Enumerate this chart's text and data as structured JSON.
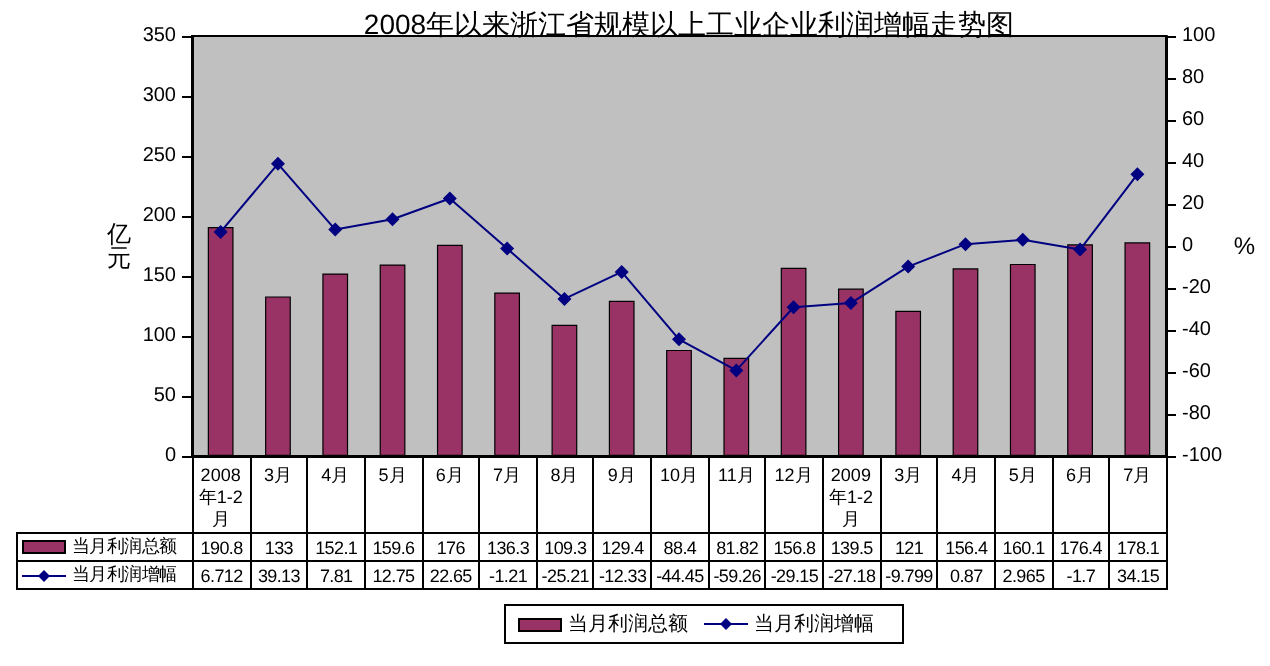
{
  "chart_data": {
    "type": "bar",
    "title": "2008年以来浙江省规模以上工业企业利润增幅走势图",
    "ylabel": "亿元",
    "y2label": "%",
    "categories": [
      "2008年1-2月",
      "3月",
      "4月",
      "5月",
      "6月",
      "7月",
      "8月",
      "9月",
      "10月",
      "11月",
      "12月",
      "2009年1-2月",
      "3月",
      "4月",
      "5月",
      "6月",
      "7月"
    ],
    "series": [
      {
        "name": "当月利润总额",
        "color": "#993366",
        "values": [
          190.8,
          133,
          152.1,
          159.6,
          176,
          136.3,
          109.3,
          129.4,
          88.4,
          81.82,
          156.8,
          139.5,
          121,
          156.4,
          160.1,
          176.4,
          178.1
        ]
      },
      {
        "name": "当月利润增幅",
        "type": "line",
        "axis": "y2",
        "color": "#000080",
        "marker": "diamond",
        "values": [
          6.712,
          39.13,
          7.81,
          12.75,
          22.65,
          -1.21,
          -25.21,
          -12.33,
          -44.45,
          -59.26,
          -29.15,
          -27.18,
          -9.799,
          0.87,
          2.965,
          -1.7,
          34.15
        ]
      }
    ],
    "ylim": [
      0,
      350
    ],
    "yticks": [
      0,
      50,
      100,
      150,
      200,
      250,
      300,
      350
    ],
    "y2lim": [
      -100,
      100
    ],
    "y2ticks": [
      -100,
      -80,
      -60,
      -40,
      -20,
      0,
      20,
      40,
      60,
      80,
      100
    ],
    "data_labels": true,
    "legend": "bottom",
    "grid": false
  }
}
